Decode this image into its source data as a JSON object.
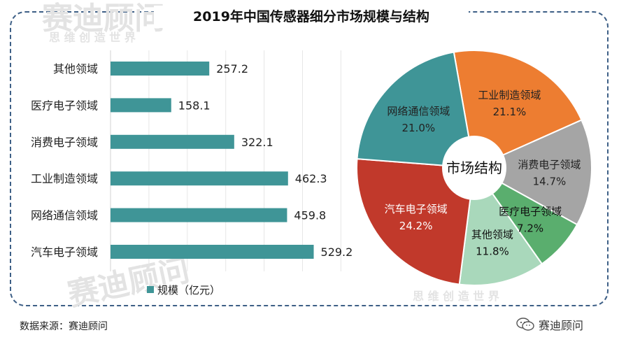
{
  "title": "2019年中国传感器细分市场规模与结构",
  "legend_label": "规模（亿元）",
  "source_text": "数据来源：赛迪顾问",
  "brand_text": "赛迪顾问",
  "watermark_main": "赛迪顾问",
  "watermark_sub": "思 维 创 造 世 界",
  "pie_center_label": "市场结构",
  "colors": {
    "bar": "#3f9597",
    "frame": "#3d5f86"
  },
  "chart_data": [
    {
      "type": "bar",
      "orientation": "horizontal",
      "categories": [
        "其他领域",
        "医疗电子领域",
        "消费电子领域",
        "工业制造领域",
        "网络通信领域",
        "汽车电子领域"
      ],
      "series": [
        {
          "name": "规模（亿元）",
          "values": [
            257.2,
            158.1,
            322.1,
            462.3,
            459.8,
            529.2
          ]
        }
      ],
      "data_labels": [
        "257.2",
        "158.1",
        "322.1",
        "462.3",
        "459.8",
        "529.2"
      ],
      "xlim": [
        0,
        700
      ],
      "grid": true,
      "legend": "bottom"
    },
    {
      "type": "pie",
      "style": "donut",
      "slices": [
        {
          "label": "工业制造领域",
          "value": 21.1,
          "value_label": "21.1%",
          "color": "#ed7d31",
          "text_color": "#222222"
        },
        {
          "label": "消费电子领域",
          "value": 14.7,
          "value_label": "14.7%",
          "color": "#a5a5a5",
          "text_color": "#222222"
        },
        {
          "label": "医疗电子领域",
          "value": 7.2,
          "value_label": "7.2%",
          "color": "#5aae6e",
          "text_color": "#111111"
        },
        {
          "label": "其他领域",
          "value": 11.8,
          "value_label": "11.8%",
          "color": "#a9d8bb",
          "text_color": "#111111"
        },
        {
          "label": "汽车电子领域",
          "value": 24.2,
          "value_label": "24.2%",
          "color": "#c1392b",
          "text_color": "#ffffff"
        },
        {
          "label": "网络通信领域",
          "value": 21.0,
          "value_label": "21.0%",
          "color": "#3f9597",
          "text_color": "#222222"
        }
      ]
    }
  ]
}
